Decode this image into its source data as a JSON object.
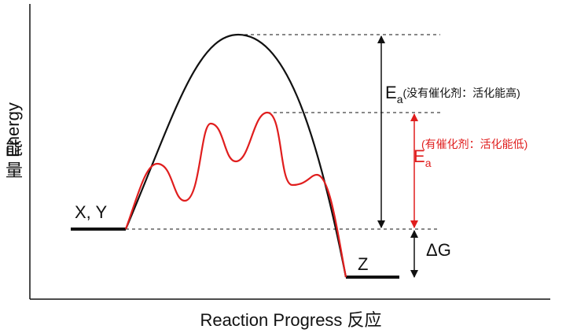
{
  "axes": {
    "y_label": "Energy",
    "y_label_zh": [
      "能",
      "量"
    ],
    "x_label": "Reaction Progress 反应"
  },
  "states": {
    "reactant": "X, Y",
    "product": "Z"
  },
  "annotations": {
    "uncatalyzed": {
      "symbol": "E",
      "subscript": "a",
      "note": "(没有催化剂：活化能高)"
    },
    "catalyzed": {
      "symbol": "E",
      "subscript": "a",
      "note": "(有催化剂：活化能低)"
    },
    "delta_g": "ΔG"
  }
}
